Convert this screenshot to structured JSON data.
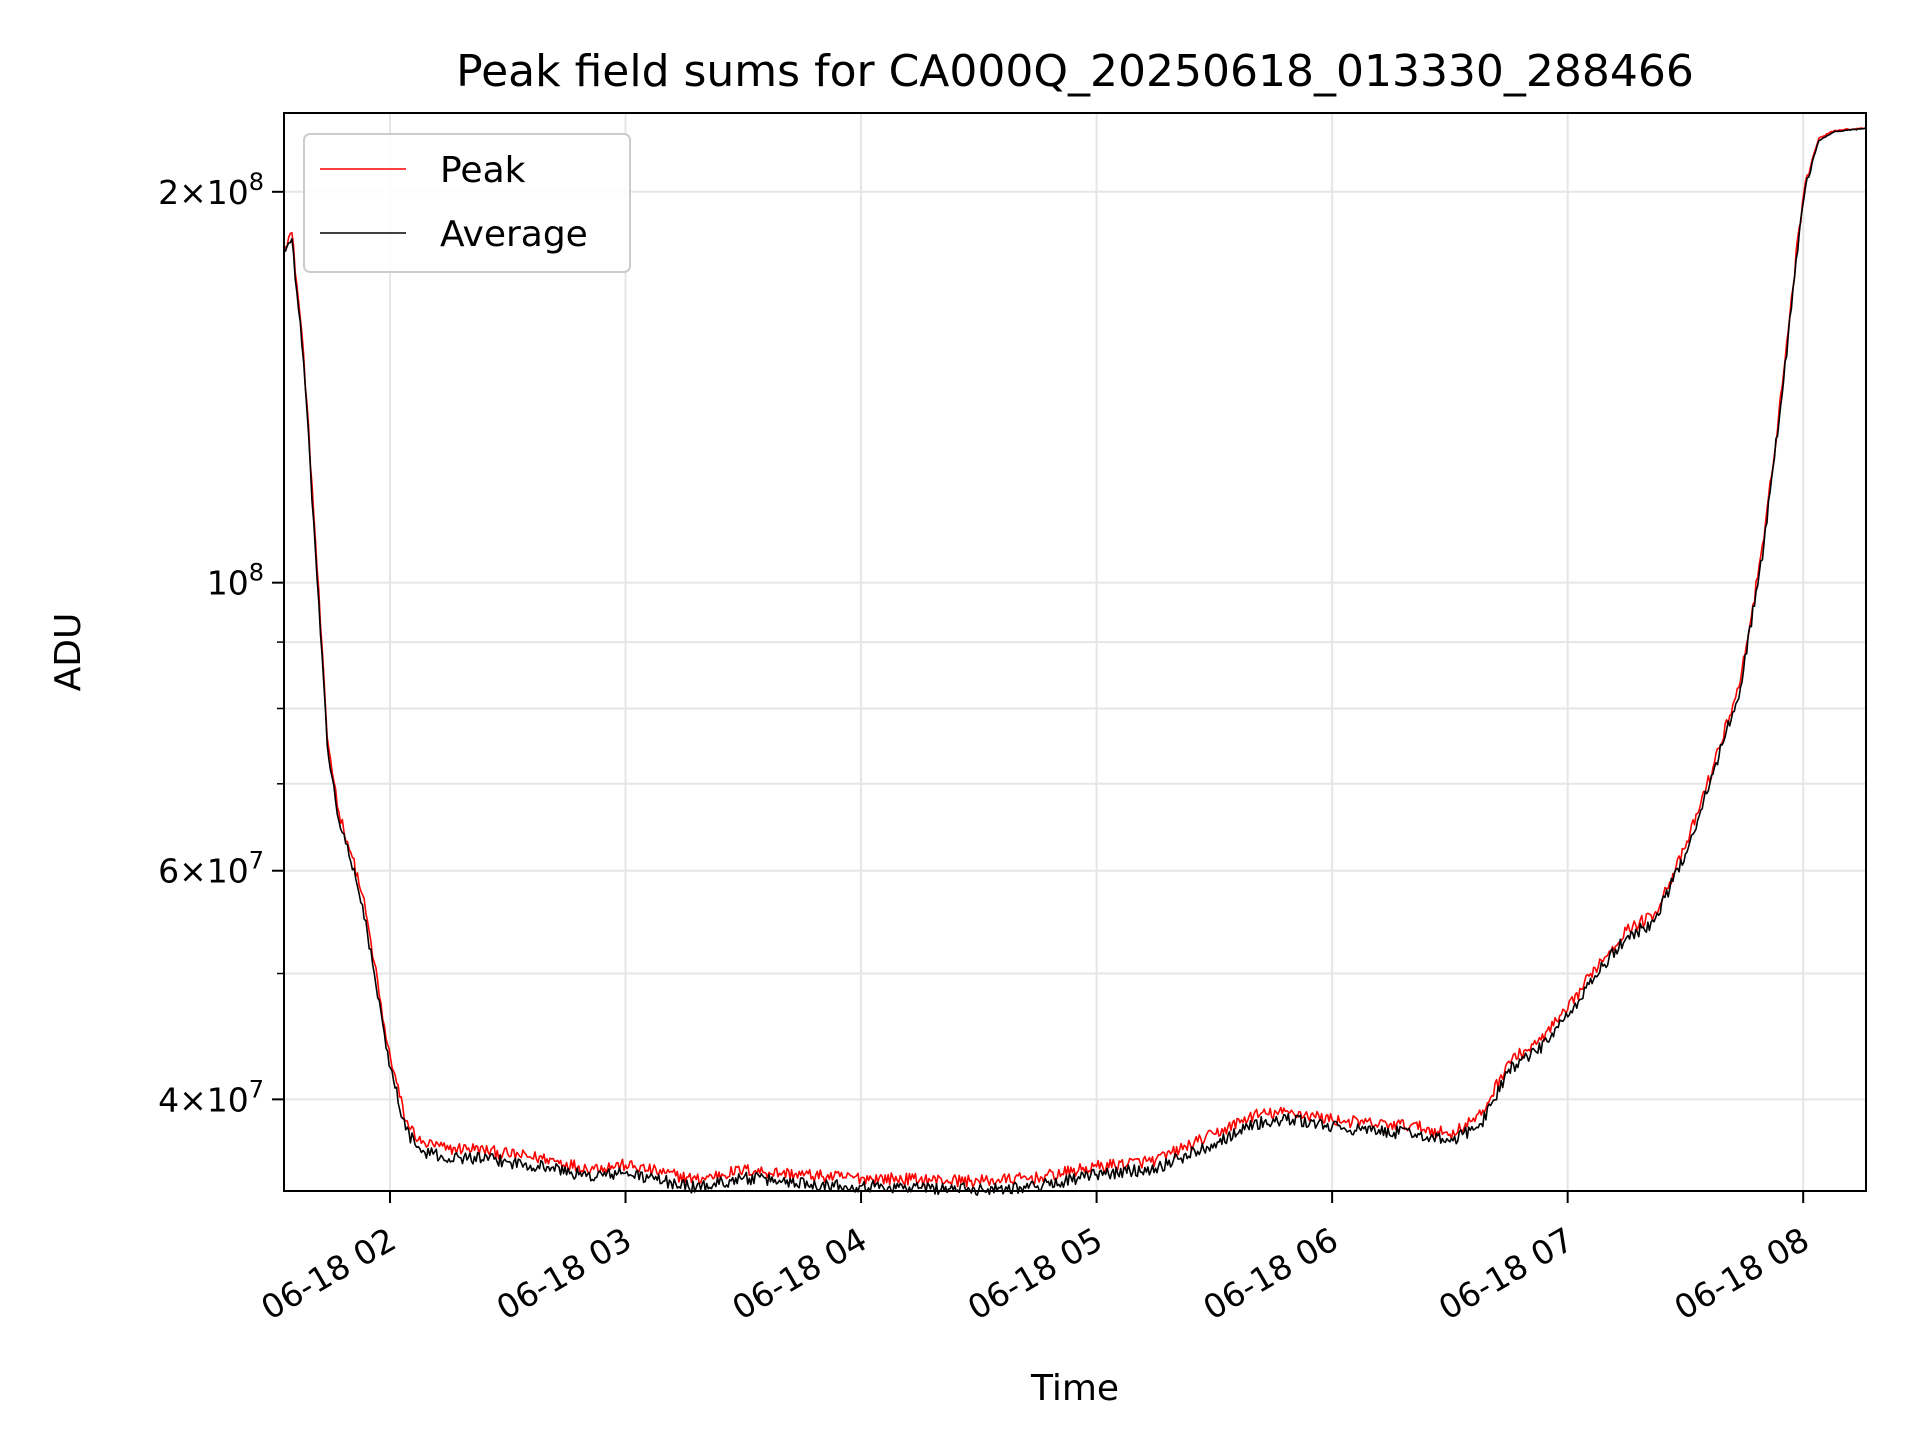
{
  "chart_data": {
    "type": "line",
    "title": "Peak field sums for CA000Q_20250618_013330_288466",
    "xlabel": "Time",
    "ylabel": "ADU",
    "yscale": "log",
    "grid": true,
    "legend_position": "upper-left",
    "xlim": [
      "2025-06-18 01:33",
      "2025-06-18 08:16"
    ],
    "ylim": [
      34000000,
      230000000
    ],
    "x_ticks": [
      {
        "value": "2025-06-18 02:00",
        "label": "06-18 02"
      },
      {
        "value": "2025-06-18 03:00",
        "label": "06-18 03"
      },
      {
        "value": "2025-06-18 04:00",
        "label": "06-18 04"
      },
      {
        "value": "2025-06-18 05:00",
        "label": "06-18 05"
      },
      {
        "value": "2025-06-18 06:00",
        "label": "06-18 06"
      },
      {
        "value": "2025-06-18 07:00",
        "label": "06-18 07"
      },
      {
        "value": "2025-06-18 08:00",
        "label": "06-18 08"
      }
    ],
    "y_ticks_major": [
      {
        "value": 40000000,
        "base": "4",
        "times": "×",
        "pow": "10",
        "exp": "7"
      },
      {
        "value": 60000000,
        "base": "6",
        "times": "×",
        "pow": "10",
        "exp": "7"
      },
      {
        "value": 100000000,
        "base": "",
        "times": "",
        "pow": "10",
        "exp": "8"
      },
      {
        "value": 200000000,
        "base": "2",
        "times": "×",
        "pow": "10",
        "exp": "8"
      }
    ],
    "y_ticks_minor": [
      50000000,
      70000000,
      80000000,
      90000000
    ],
    "series": [
      {
        "name": "Peak",
        "color": "#ff0000",
        "x": [
          "2025-06-18 01:33",
          "2025-06-18 01:35",
          "2025-06-18 01:38",
          "2025-06-18 01:41",
          "2025-06-18 01:44",
          "2025-06-18 01:47",
          "2025-06-18 01:50",
          "2025-06-18 01:53",
          "2025-06-18 01:56",
          "2025-06-18 01:59",
          "2025-06-18 02:04",
          "2025-06-18 02:08",
          "2025-06-18 02:11",
          "2025-06-18 02:15",
          "2025-06-18 02:20",
          "2025-06-18 02:30",
          "2025-06-18 02:40",
          "2025-06-18 02:50",
          "2025-06-18 03:00",
          "2025-06-18 03:10",
          "2025-06-18 03:18",
          "2025-06-18 03:30",
          "2025-06-18 03:40",
          "2025-06-18 03:50",
          "2025-06-18 04:00",
          "2025-06-18 04:15",
          "2025-06-18 04:30",
          "2025-06-18 04:45",
          "2025-06-18 05:00",
          "2025-06-18 05:15",
          "2025-06-18 05:30",
          "2025-06-18 05:40",
          "2025-06-18 05:50",
          "2025-06-18 06:00",
          "2025-06-18 06:10",
          "2025-06-18 06:20",
          "2025-06-18 06:30",
          "2025-06-18 06:38",
          "2025-06-18 06:45",
          "2025-06-18 06:52",
          "2025-06-18 07:00",
          "2025-06-18 07:07",
          "2025-06-18 07:15",
          "2025-06-18 07:22",
          "2025-06-18 07:30",
          "2025-06-18 07:37",
          "2025-06-18 07:44",
          "2025-06-18 07:50",
          "2025-06-18 07:55",
          "2025-06-18 07:59",
          "2025-06-18 08:01",
          "2025-06-18 08:04",
          "2025-06-18 08:08",
          "2025-06-18 08:16"
        ],
        "y": [
          182000000,
          186000000,
          150000000,
          108000000,
          76000000,
          66500000,
          62000000,
          57500000,
          51000000,
          44500000,
          38500000,
          37000000,
          36900000,
          36600000,
          36700000,
          36300000,
          36000000,
          35400000,
          35600000,
          35100000,
          34700000,
          35300000,
          35100000,
          34900000,
          34800000,
          34700000,
          34600000,
          34800000,
          35500000,
          35900000,
          37600000,
          38900000,
          39100000,
          38600000,
          38300000,
          38200000,
          37600000,
          38900000,
          42800000,
          44100000,
          46900000,
          50500000,
          54000000,
          55500000,
          62500000,
          72000000,
          84000000,
          108000000,
          145000000,
          188000000,
          206000000,
          220000000,
          223000000,
          224000000
        ]
      },
      {
        "name": "Average",
        "color": "#000000",
        "x": [
          "2025-06-18 01:33",
          "2025-06-18 01:35",
          "2025-06-18 01:38",
          "2025-06-18 01:41",
          "2025-06-18 01:44",
          "2025-06-18 01:47",
          "2025-06-18 01:50",
          "2025-06-18 01:53",
          "2025-06-18 01:56",
          "2025-06-18 01:59",
          "2025-06-18 02:04",
          "2025-06-18 02:08",
          "2025-06-18 02:11",
          "2025-06-18 02:15",
          "2025-06-18 02:20",
          "2025-06-18 02:30",
          "2025-06-18 02:40",
          "2025-06-18 02:50",
          "2025-06-18 03:00",
          "2025-06-18 03:10",
          "2025-06-18 03:18",
          "2025-06-18 03:30",
          "2025-06-18 03:40",
          "2025-06-18 03:50",
          "2025-06-18 04:00",
          "2025-06-18 04:15",
          "2025-06-18 04:30",
          "2025-06-18 04:45",
          "2025-06-18 05:00",
          "2025-06-18 05:15",
          "2025-06-18 05:30",
          "2025-06-18 05:40",
          "2025-06-18 05:50",
          "2025-06-18 06:00",
          "2025-06-18 06:10",
          "2025-06-18 06:20",
          "2025-06-18 06:30",
          "2025-06-18 06:38",
          "2025-06-18 06:45",
          "2025-06-18 06:52",
          "2025-06-18 07:00",
          "2025-06-18 07:07",
          "2025-06-18 07:15",
          "2025-06-18 07:22",
          "2025-06-18 07:30",
          "2025-06-18 07:37",
          "2025-06-18 07:44",
          "2025-06-18 07:50",
          "2025-06-18 07:55",
          "2025-06-18 07:59",
          "2025-06-18 08:01",
          "2025-06-18 08:04",
          "2025-06-18 08:08",
          "2025-06-18 08:16"
        ],
        "y": [
          180000000,
          184000000,
          148000000,
          106000000,
          75000000,
          65500000,
          61000000,
          56500000,
          50000000,
          43800000,
          37900000,
          36400000,
          36300000,
          36000000,
          36100000,
          35800000,
          35500000,
          34900000,
          35100000,
          34600000,
          34200000,
          34800000,
          34600000,
          34400000,
          34300000,
          34200000,
          34100000,
          34300000,
          35000000,
          35400000,
          37000000,
          38300000,
          38600000,
          38100000,
          37800000,
          37700000,
          37100000,
          38300000,
          42200000,
          43500000,
          46300000,
          49800000,
          53300000,
          54800000,
          61800000,
          71200000,
          83000000,
          107000000,
          143000000,
          186000000,
          205000000,
          219000000,
          222500000,
          223800000
        ]
      }
    ]
  }
}
